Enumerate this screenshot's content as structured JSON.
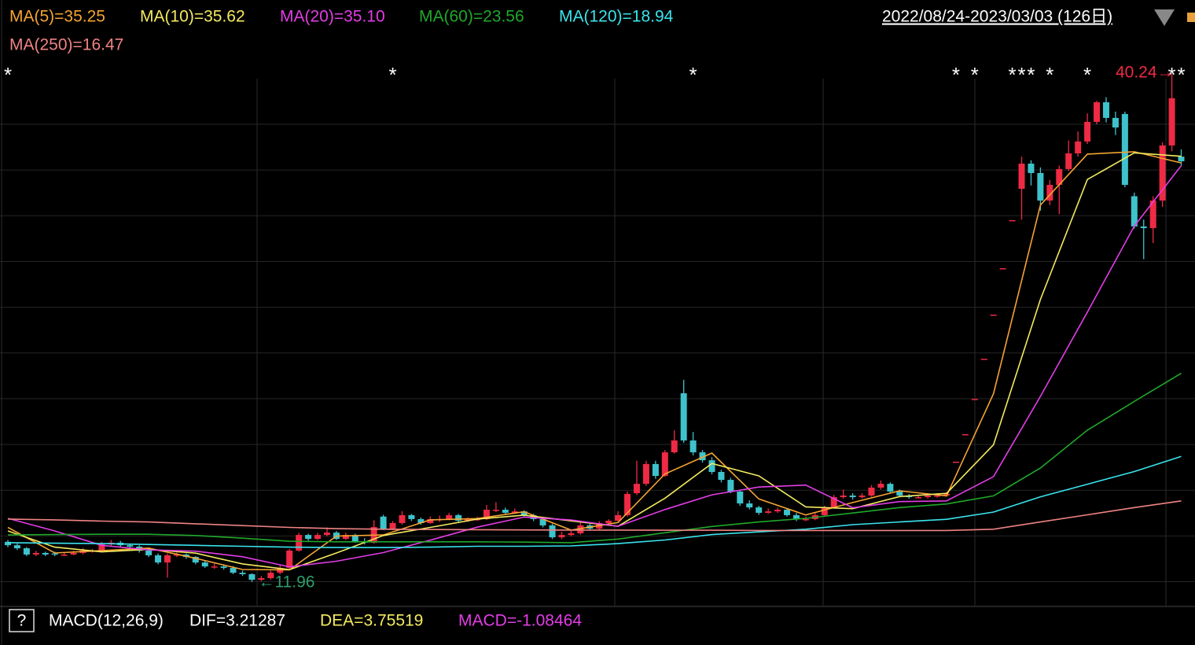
{
  "header": {
    "date_range": "2022/08/24-2023/03/03 (126日)"
  },
  "chart_data": {
    "type": "candlestick",
    "ylim": [
      10.65,
      41.68
    ],
    "up_color": "#ee2a44",
    "down_color": "#3ec3cc",
    "open": [
      14.2,
      14.01,
      13.84,
      13.49,
      13.58,
      13.55,
      13.49,
      13.49,
      13.58,
      13.71,
      13.71,
      14.06,
      14.15,
      14.01,
      13.93,
      13.71,
      13.45,
      13.05,
      13.45,
      13.49,
      13.36,
      13.05,
      12.83,
      12.83,
      12.75,
      12.48,
      12.4,
      12.09,
      12.18,
      12.48,
      12.75,
      13.71,
      14.58,
      14.36,
      14.58,
      14.71,
      14.36,
      14.58,
      14.23,
      14.15,
      15.6,
      14.93,
      15.24,
      15.68,
      15.46,
      15.24,
      15.46,
      15.46,
      15.68,
      15.37,
      15.46,
      15.46,
      15.98,
      15.98,
      15.81,
      15.89,
      15.68,
      15.46,
      15.11,
      14.45,
      14.58,
      14.67,
      15.11,
      14.93,
      15.24,
      15.37,
      15.68,
      16.9,
      17.42,
      18.52,
      17.86,
      19.17,
      22.45,
      19.83,
      19.17,
      18.73,
      18.08,
      17.64,
      16.99,
      16.33,
      16.11,
      15.81,
      15.89,
      15.98,
      15.68,
      15.46,
      15.46,
      15.68,
      16.11,
      16.68,
      16.77,
      16.68,
      16.77,
      17.21,
      17.42,
      16.99,
      16.77,
      16.68,
      16.68,
      16.77,
      16.77,
      18.65,
      20.18,
      22.14,
      24.37,
      26.82,
      29.4,
      32.07,
      33.81,
      35.21,
      34.69,
      33.16,
      34.03,
      34.91,
      35.78,
      36.44,
      37.53,
      38.62,
      37.75,
      37.97,
      33.4,
      31.72,
      31.63,
      33.16,
      36.22,
      35.6
    ],
    "high": [
      14.3,
      14.1,
      13.9,
      13.7,
      13.65,
      13.65,
      13.6,
      13.7,
      13.85,
      13.8,
      14.2,
      14.3,
      14.25,
      14.1,
      14.0,
      13.8,
      13.55,
      13.55,
      13.6,
      13.55,
      13.4,
      13.15,
      13.0,
      12.95,
      12.85,
      12.6,
      12.45,
      12.3,
      12.6,
      12.9,
      13.8,
      14.7,
      14.65,
      14.7,
      15.0,
      14.8,
      14.7,
      14.65,
      14.4,
      15.4,
      15.7,
      15.35,
      15.9,
      15.75,
      15.55,
      15.6,
      15.65,
      15.8,
      15.75,
      15.55,
      15.6,
      16.25,
      16.4,
      16.1,
      16.05,
      15.95,
      15.75,
      15.55,
      15.2,
      14.75,
      14.8,
      15.3,
      15.2,
      15.35,
      15.45,
      15.9,
      17.0,
      18.7,
      18.7,
      18.7,
      19.3,
      20.4,
      23.2,
      20.3,
      19.3,
      18.9,
      18.2,
      17.75,
      17.1,
      16.5,
      16.2,
      16.05,
      16.1,
      16.05,
      15.8,
      15.6,
      15.8,
      16.2,
      16.8,
      17.1,
      16.9,
      16.9,
      17.35,
      17.6,
      17.5,
      17.1,
      16.85,
      16.8,
      16.9,
      16.85,
      16.95,
      18.65,
      20.18,
      22.14,
      24.37,
      26.82,
      29.4,
      32.07,
      35.6,
      35.4,
      35.0,
      34.3,
      35.1,
      36.5,
      37.0,
      38.0,
      38.7,
      38.9,
      38.1,
      38.1,
      33.6,
      32.1,
      33.4,
      36.4,
      40.24,
      36.0
    ],
    "low": [
      13.9,
      13.75,
      13.4,
      13.4,
      13.4,
      13.4,
      13.4,
      13.45,
      13.5,
      13.6,
      13.65,
      13.95,
      13.9,
      13.85,
      13.6,
      13.35,
      12.95,
      12.2,
      13.35,
      13.25,
      12.95,
      12.75,
      12.7,
      12.65,
      12.4,
      12.3,
      11.96,
      12.0,
      12.1,
      12.4,
      12.7,
      13.65,
      14.25,
      14.3,
      14.5,
      14.3,
      14.3,
      14.15,
      14.05,
      14.1,
      14.85,
      14.85,
      15.15,
      15.35,
      15.15,
      15.2,
      15.3,
      15.4,
      15.3,
      15.3,
      15.35,
      15.4,
      15.85,
      15.7,
      15.75,
      15.6,
      15.35,
      15.0,
      14.35,
      14.35,
      14.5,
      14.6,
      14.85,
      14.85,
      15.15,
      15.3,
      15.6,
      16.8,
      17.3,
      17.7,
      17.8,
      19.1,
      19.7,
      19.0,
      18.6,
      17.95,
      17.5,
      16.9,
      16.2,
      16.0,
      15.7,
      15.75,
      15.8,
      15.6,
      15.35,
      15.35,
      15.4,
      15.6,
      16.05,
      16.6,
      16.55,
      16.6,
      16.7,
      17.1,
      16.9,
      16.7,
      16.6,
      16.6,
      16.6,
      16.65,
      16.7,
      18.65,
      20.18,
      22.14,
      24.37,
      26.82,
      29.4,
      32.07,
      32.1,
      34.0,
      32.6,
      32.9,
      32.4,
      34.8,
      35.6,
      36.3,
      37.4,
      37.5,
      36.8,
      33.9,
      31.6,
      29.9,
      30.8,
      32.8,
      35.9,
      35.1
    ],
    "close": [
      14.01,
      13.84,
      13.49,
      13.58,
      13.49,
      13.49,
      13.49,
      13.58,
      13.71,
      13.71,
      14.06,
      14.15,
      14.01,
      13.93,
      13.71,
      13.45,
      13.05,
      13.45,
      13.49,
      13.36,
      13.05,
      12.83,
      12.83,
      12.75,
      12.48,
      12.4,
      12.09,
      12.18,
      12.48,
      12.75,
      13.71,
      14.58,
      14.36,
      14.58,
      14.71,
      14.36,
      14.58,
      14.23,
      14.15,
      15.02,
      14.93,
      15.24,
      15.68,
      15.46,
      15.24,
      15.46,
      15.46,
      15.68,
      15.37,
      15.46,
      15.46,
      15.98,
      15.98,
      15.81,
      15.89,
      15.68,
      15.46,
      15.11,
      14.45,
      14.58,
      14.67,
      15.11,
      14.93,
      15.24,
      15.37,
      15.68,
      16.86,
      17.42,
      18.52,
      17.86,
      19.17,
      19.83,
      19.83,
      19.17,
      18.73,
      18.08,
      17.64,
      16.99,
      16.33,
      16.11,
      15.81,
      15.89,
      15.98,
      15.68,
      15.46,
      15.46,
      15.68,
      16.11,
      16.68,
      16.77,
      16.68,
      16.77,
      17.21,
      17.42,
      16.99,
      16.77,
      16.68,
      16.68,
      16.77,
      16.77,
      16.86,
      18.65,
      20.18,
      22.14,
      24.37,
      26.82,
      29.4,
      32.07,
      35.21,
      34.69,
      33.16,
      34.03,
      34.91,
      35.78,
      36.44,
      37.53,
      38.62,
      37.75,
      37.22,
      34.03,
      31.72,
      31.63,
      33.16,
      36.22,
      38.84,
      35.34
    ],
    "ma_x": [
      0,
      5,
      10,
      15,
      20,
      25,
      30,
      35,
      40,
      45,
      50,
      55,
      60,
      65,
      70,
      75,
      80,
      85,
      90,
      95,
      100,
      105,
      110,
      115,
      120,
      125
    ],
    "series": [
      {
        "name": "MA(5)=35.25",
        "color": "#f5a431",
        "values": [
          15.0,
          13.58,
          13.71,
          13.85,
          13.28,
          12.66,
          12.64,
          14.52,
          14.58,
          15.42,
          15.49,
          15.87,
          14.85,
          15.27,
          17.97,
          19.13,
          16.58,
          15.69,
          16.38,
          17.03,
          16.75,
          22.43,
          32.91,
          35.74,
          35.87,
          35.25
        ]
      },
      {
        "name": "MA(10)=35.62",
        "color": "#f3ea5f",
        "values": [
          14.8,
          13.9,
          13.64,
          13.78,
          13.57,
          12.97,
          12.65,
          13.58,
          14.55,
          15.0,
          15.46,
          15.68,
          15.36,
          15.06,
          16.62,
          18.55,
          17.86,
          16.14,
          16.04,
          16.71,
          16.89,
          19.59,
          27.67,
          34.33,
          35.81,
          35.62
        ]
      },
      {
        "name": "MA(20)=35.10",
        "color": "#e23de6",
        "values": [
          15.5,
          14.8,
          14.0,
          13.75,
          13.68,
          13.37,
          12.81,
          13.12,
          13.6,
          14.29,
          15.01,
          15.57,
          15.41,
          15.06,
          15.99,
          16.81,
          17.24,
          17.35,
          16.09,
          16.43,
          16.47,
          17.82,
          22.28,
          26.96,
          31.74,
          35.1
        ]
      },
      {
        "name": "MA(60)=23.56",
        "color": "#1fa82a",
        "values": [
          14.58,
          14.6,
          14.62,
          14.62,
          14.55,
          14.4,
          14.23,
          14.2,
          14.2,
          14.2,
          14.2,
          14.18,
          14.15,
          14.35,
          14.7,
          15.05,
          15.3,
          15.5,
          15.8,
          16.1,
          16.3,
          16.75,
          18.3,
          20.4,
          22.0,
          23.56
        ]
      },
      {
        "name": "MA(120)=18.94",
        "color": "#3ae4ee",
        "values": [
          14.15,
          14.12,
          14.1,
          14.05,
          14.0,
          13.95,
          13.9,
          13.88,
          13.88,
          13.9,
          13.95,
          13.95,
          13.97,
          14.1,
          14.3,
          14.6,
          14.75,
          14.9,
          15.15,
          15.3,
          15.45,
          15.85,
          16.7,
          17.4,
          18.1,
          18.94
        ]
      },
      {
        "name": "MA(250)=16.47",
        "color": "#f08383",
        "values": [
          15.46,
          15.42,
          15.35,
          15.3,
          15.2,
          15.1,
          15.0,
          14.93,
          14.9,
          14.88,
          14.87,
          14.86,
          14.85,
          14.85,
          14.84,
          14.84,
          14.83,
          14.83,
          14.83,
          14.83,
          14.83,
          14.9,
          15.3,
          15.7,
          16.1,
          16.47
        ]
      }
    ],
    "marker_symbol": "*",
    "marker_index": [
      0,
      41,
      73,
      101,
      103,
      107,
      108,
      109,
      111,
      115,
      124,
      125
    ],
    "low_label": "←11.96",
    "high_label": "40.24→"
  },
  "indicator": {
    "help": "?",
    "name": "MACD(12,26,9)",
    "dif": "DIF=3.21287",
    "dea": "DEA=3.75519",
    "macd": "MACD=-1.08464"
  }
}
